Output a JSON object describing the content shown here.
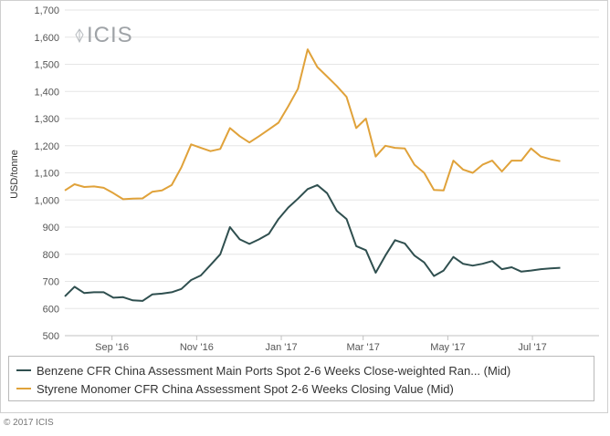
{
  "copyright": "© 2017 ICIS",
  "logo_text": "ICIS",
  "chart_data": {
    "type": "line",
    "ylabel": "USD/tonne",
    "ylim": [
      500,
      1700
    ],
    "yticks": [
      500,
      600,
      700,
      800,
      900,
      1000,
      1100,
      1200,
      1300,
      1400,
      1500,
      1600,
      1700
    ],
    "ytick_labels": [
      "500",
      "600",
      "700",
      "800",
      "900",
      "1,000",
      "1,100",
      "1,200",
      "1,300",
      "1,400",
      "1,500",
      "1,600",
      "1,700"
    ],
    "xlim": [
      "2016-07-29",
      "2017-08-18"
    ],
    "xticks": [
      {
        "date": "2016-09-01",
        "label": "Sep '16"
      },
      {
        "date": "2016-11-01",
        "label": "Nov '16"
      },
      {
        "date": "2017-01-01",
        "label": "Jan '17"
      },
      {
        "date": "2017-03-01",
        "label": "Mar '17"
      },
      {
        "date": "2017-05-01",
        "label": "May '17"
      },
      {
        "date": "2017-07-01",
        "label": "Jul '17"
      }
    ],
    "grid": "horizontal",
    "legend_position": "bottom",
    "series": [
      {
        "name": "Benzene CFR China Assessment Main Ports Spot 2-6 Weeks Close-weighted Ran... (Mid)",
        "color": "#2f4f4f",
        "points": [
          [
            "2016-07-29",
            645
          ],
          [
            "2016-08-05",
            680
          ],
          [
            "2016-08-12",
            657
          ],
          [
            "2016-08-19",
            660
          ],
          [
            "2016-08-26",
            660
          ],
          [
            "2016-09-02",
            640
          ],
          [
            "2016-09-09",
            642
          ],
          [
            "2016-09-16",
            630
          ],
          [
            "2016-09-23",
            628
          ],
          [
            "2016-09-30",
            652
          ],
          [
            "2016-10-07",
            655
          ],
          [
            "2016-10-14",
            660
          ],
          [
            "2016-10-21",
            672
          ],
          [
            "2016-10-28",
            705
          ],
          [
            "2016-11-04",
            722
          ],
          [
            "2016-11-11",
            760
          ],
          [
            "2016-11-18",
            800
          ],
          [
            "2016-11-25",
            900
          ],
          [
            "2016-12-02",
            855
          ],
          [
            "2016-12-09",
            838
          ],
          [
            "2016-12-16",
            855
          ],
          [
            "2016-12-23",
            875
          ],
          [
            "2016-12-30",
            930
          ],
          [
            "2017-01-06",
            972
          ],
          [
            "2017-01-13",
            1005
          ],
          [
            "2017-01-20",
            1040
          ],
          [
            "2017-01-27",
            1055
          ],
          [
            "2017-02-03",
            1025
          ],
          [
            "2017-02-10",
            960
          ],
          [
            "2017-02-17",
            930
          ],
          [
            "2017-02-24",
            830
          ],
          [
            "2017-03-03",
            815
          ],
          [
            "2017-03-10",
            732
          ],
          [
            "2017-03-17",
            795
          ],
          [
            "2017-03-24",
            852
          ],
          [
            "2017-03-31",
            840
          ],
          [
            "2017-04-07",
            795
          ],
          [
            "2017-04-14",
            770
          ],
          [
            "2017-04-21",
            720
          ],
          [
            "2017-04-28",
            740
          ],
          [
            "2017-05-05",
            790
          ],
          [
            "2017-05-12",
            765
          ],
          [
            "2017-05-19",
            758
          ],
          [
            "2017-05-26",
            765
          ],
          [
            "2017-06-02",
            775
          ],
          [
            "2017-06-09",
            745
          ],
          [
            "2017-06-16",
            752
          ],
          [
            "2017-06-23",
            736
          ],
          [
            "2017-06-30",
            740
          ],
          [
            "2017-07-07",
            745
          ],
          [
            "2017-07-14",
            748
          ],
          [
            "2017-07-21",
            750
          ]
        ]
      },
      {
        "name": "Styrene Monomer CFR China Assessment Spot 2-6 Weeks Closing Value (Mid)",
        "color": "#e0a23a",
        "points": [
          [
            "2016-07-29",
            1035
          ],
          [
            "2016-08-05",
            1058
          ],
          [
            "2016-08-12",
            1048
          ],
          [
            "2016-08-19",
            1050
          ],
          [
            "2016-08-26",
            1045
          ],
          [
            "2016-09-02",
            1025
          ],
          [
            "2016-09-09",
            1003
          ],
          [
            "2016-09-16",
            1005
          ],
          [
            "2016-09-23",
            1006
          ],
          [
            "2016-09-30",
            1030
          ],
          [
            "2016-10-07",
            1035
          ],
          [
            "2016-10-14",
            1055
          ],
          [
            "2016-10-21",
            1120
          ],
          [
            "2016-10-28",
            1205
          ],
          [
            "2016-11-04",
            1192
          ],
          [
            "2016-11-11",
            1180
          ],
          [
            "2016-11-18",
            1188
          ],
          [
            "2016-11-25",
            1265
          ],
          [
            "2016-12-02",
            1235
          ],
          [
            "2016-12-09",
            1212
          ],
          [
            "2016-12-16",
            1235
          ],
          [
            "2016-12-23",
            1260
          ],
          [
            "2016-12-30",
            1285
          ],
          [
            "2017-01-06",
            1345
          ],
          [
            "2017-01-13",
            1410
          ],
          [
            "2017-01-20",
            1555
          ],
          [
            "2017-01-27",
            1490
          ],
          [
            "2017-02-03",
            1455
          ],
          [
            "2017-02-10",
            1420
          ],
          [
            "2017-02-17",
            1380
          ],
          [
            "2017-02-24",
            1265
          ],
          [
            "2017-03-03",
            1300
          ],
          [
            "2017-03-10",
            1160
          ],
          [
            "2017-03-17",
            1200
          ],
          [
            "2017-03-24",
            1192
          ],
          [
            "2017-03-31",
            1190
          ],
          [
            "2017-04-07",
            1130
          ],
          [
            "2017-04-14",
            1100
          ],
          [
            "2017-04-21",
            1037
          ],
          [
            "2017-04-28",
            1035
          ],
          [
            "2017-05-05",
            1145
          ],
          [
            "2017-05-12",
            1112
          ],
          [
            "2017-05-19",
            1100
          ],
          [
            "2017-05-26",
            1130
          ],
          [
            "2017-06-02",
            1145
          ],
          [
            "2017-06-09",
            1105
          ],
          [
            "2017-06-16",
            1145
          ],
          [
            "2017-06-23",
            1145
          ],
          [
            "2017-06-30",
            1190
          ],
          [
            "2017-07-07",
            1160
          ],
          [
            "2017-07-14",
            1150
          ],
          [
            "2017-07-21",
            1143
          ]
        ]
      }
    ]
  }
}
